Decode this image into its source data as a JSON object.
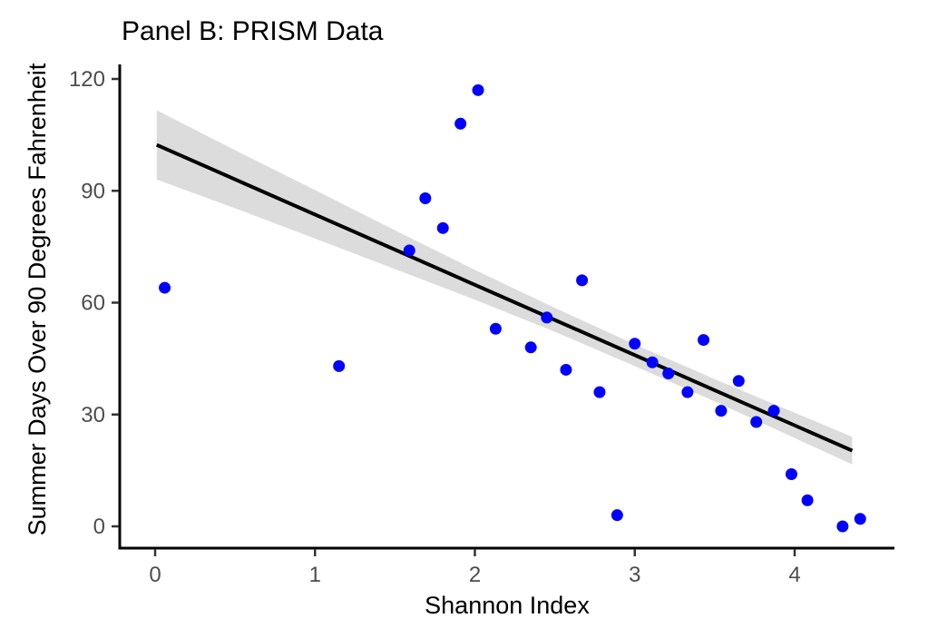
{
  "figure": {
    "title": "Panel B: PRISM Data"
  },
  "colors": {
    "point": "#0000ff",
    "regression_line": "#000000",
    "confidence_band": "#dcdcdc",
    "axis_line": "#000000",
    "tick_mark": "#333333",
    "tick_text": "#4d4d4d",
    "background": "#ffffff"
  },
  "chart_data": {
    "type": "scatter",
    "title": "Panel B: PRISM Data",
    "xlabel": "Shannon Index",
    "ylabel": "Summer Days Over 90 Degrees Fahrenheit",
    "x_ticks": [
      0,
      1,
      2,
      3,
      4
    ],
    "y_ticks": [
      0,
      30,
      60,
      90,
      120
    ],
    "xlim": [
      -0.22,
      4.62
    ],
    "ylim": [
      -5.8,
      123.4
    ],
    "grid": "off",
    "legend": "none",
    "points": [
      [
        0.06,
        64
      ],
      [
        1.15,
        43
      ],
      [
        1.59,
        74
      ],
      [
        1.69,
        88
      ],
      [
        1.8,
        80
      ],
      [
        1.91,
        108
      ],
      [
        2.02,
        117
      ],
      [
        2.13,
        53
      ],
      [
        2.35,
        48
      ],
      [
        2.45,
        56
      ],
      [
        2.57,
        42
      ],
      [
        2.67,
        66
      ],
      [
        2.78,
        36
      ],
      [
        2.89,
        3
      ],
      [
        3.0,
        49
      ],
      [
        3.11,
        44
      ],
      [
        3.21,
        41
      ],
      [
        3.33,
        36
      ],
      [
        3.43,
        50
      ],
      [
        3.54,
        31
      ],
      [
        3.65,
        39
      ],
      [
        3.76,
        28
      ],
      [
        3.87,
        31
      ],
      [
        3.98,
        14
      ],
      [
        4.08,
        7
      ],
      [
        4.3,
        0
      ],
      [
        4.41,
        2
      ]
    ],
    "regression_line": {
      "x1": 0.01,
      "y1": 102.3,
      "x2": 4.36,
      "y2": 20.3
    },
    "confidence_band": [
      {
        "x": 0.01,
        "lower": 93.0,
        "upper": 111.6
      },
      {
        "x": 0.5,
        "lower": 85.3,
        "upper": 100.9
      },
      {
        "x": 1.0,
        "lower": 77.2,
        "upper": 90.2
      },
      {
        "x": 1.5,
        "lower": 69.0,
        "upper": 79.4
      },
      {
        "x": 2.0,
        "lower": 60.8,
        "upper": 68.8
      },
      {
        "x": 2.5,
        "lower": 52.2,
        "upper": 58.6
      },
      {
        "x": 3.0,
        "lower": 43.0,
        "upper": 48.8
      },
      {
        "x": 3.5,
        "lower": 33.5,
        "upper": 39.5
      },
      {
        "x": 4.0,
        "lower": 23.7,
        "upper": 30.5
      },
      {
        "x": 4.36,
        "lower": 16.6,
        "upper": 24.0
      }
    ]
  }
}
